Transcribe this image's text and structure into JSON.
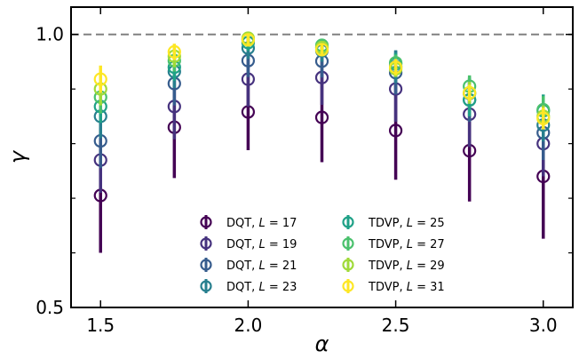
{
  "chart_data": {
    "type": "scatter",
    "title": "",
    "xlabel": "α",
    "ylabel": "γ",
    "xlim": [
      1.4,
      3.1
    ],
    "ylim": [
      0.5,
      1.05
    ],
    "x_ticks": [
      1.5,
      2.0,
      2.5,
      3.0
    ],
    "x_tick_labels": [
      "1.5",
      "2.0",
      "2.5",
      "3.0"
    ],
    "y_ticks": [
      0.5,
      1.0
    ],
    "y_tick_labels": [
      "0.5",
      "1.0"
    ],
    "y_minor_ticks": [
      0.6,
      0.7,
      0.8,
      0.9
    ],
    "reference_line": {
      "y": 1.0,
      "style": "dashed",
      "color": "#808080"
    },
    "legend": {
      "location": "lower-center",
      "columns": 2
    },
    "x": [
      1.5,
      1.75,
      2.0,
      2.25,
      2.5,
      2.75,
      3.0
    ],
    "series": [
      {
        "name": "DQT, L = 17",
        "method": "DQT",
        "L": "17",
        "color": "#440154",
        "values": [
          0.705,
          0.83,
          0.858,
          0.848,
          0.824,
          0.787,
          0.74
        ],
        "errors": [
          0.105,
          0.093,
          0.07,
          0.082,
          0.09,
          0.093,
          0.114
        ]
      },
      {
        "name": "DQT, L = 19",
        "method": "DQT",
        "L": "19",
        "color": "#46327e",
        "values": [
          0.77,
          0.868,
          0.918,
          0.921,
          0.9,
          0.854,
          0.8
        ],
        "errors": [
          0.06,
          0.06,
          0.05,
          0.05,
          0.06,
          0.06,
          0.06
        ]
      },
      {
        "name": "DQT, L = 21",
        "method": "DQT",
        "L": "21",
        "color": "#365c8d",
        "values": [
          0.805,
          0.91,
          0.952,
          0.951,
          0.93,
          0.88,
          0.82
        ],
        "errors": [
          0.05,
          0.04,
          0.03,
          0.03,
          0.04,
          0.04,
          0.05
        ]
      },
      {
        "name": "DQT, L = 23",
        "method": "DQT",
        "L": "23",
        "color": "#277f8e",
        "values": [
          0.85,
          0.932,
          0.975,
          0.97,
          0.941,
          0.892,
          0.834
        ],
        "errors": [
          0.04,
          0.03,
          0.02,
          0.02,
          0.03,
          0.03,
          0.03
        ]
      },
      {
        "name": "TDVP, L = 25",
        "method": "TDVP",
        "L": "25",
        "color": "#1fa187",
        "values": [
          0.868,
          0.94,
          0.985,
          0.976,
          0.946,
          0.88,
          0.86
        ],
        "errors": [
          0.03,
          0.025,
          0.015,
          0.015,
          0.02,
          0.03,
          0.03
        ]
      },
      {
        "name": "TDVP, L = 27",
        "method": "TDVP",
        "L": "27",
        "color": "#4ac16d",
        "values": [
          0.885,
          0.952,
          0.99,
          0.98,
          0.948,
          0.905,
          0.862
        ],
        "errors": [
          0.03,
          0.02,
          0.01,
          0.01,
          0.015,
          0.02,
          0.025
        ]
      },
      {
        "name": "TDVP, L = 29",
        "method": "TDVP",
        "L": "29",
        "color": "#a0da39",
        "values": [
          0.9,
          0.96,
          0.993,
          0.976,
          0.937,
          0.893,
          0.85
        ],
        "errors": [
          0.03,
          0.02,
          0.01,
          0.01,
          0.015,
          0.02,
          0.02
        ]
      },
      {
        "name": "TDVP, L = 31",
        "method": "TDVP",
        "L": "31",
        "color": "#fde725",
        "values": [
          0.918,
          0.968,
          0.99,
          0.972,
          0.94,
          0.893,
          0.846
        ],
        "errors": [
          0.025,
          0.015,
          0.01,
          0.01,
          0.015,
          0.015,
          0.02
        ]
      }
    ]
  }
}
